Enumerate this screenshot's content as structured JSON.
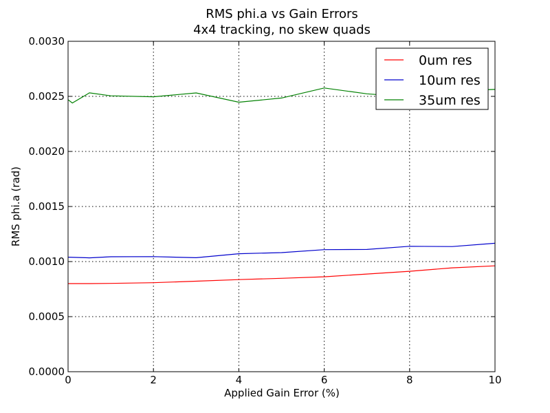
{
  "chart_data": {
    "type": "line",
    "title": "RMS phi.a vs Gain Errors",
    "subtitle": "4x4 tracking, no skew quads",
    "xlabel": "Applied Gain Error (%)",
    "ylabel": "RMS phi.a (rad)",
    "xlim": [
      0,
      10
    ],
    "ylim": [
      0,
      0.003
    ],
    "x_ticks": [
      "0",
      "2",
      "4",
      "6",
      "8",
      "10"
    ],
    "y_ticks": [
      "0.0000",
      "0.0005",
      "0.0010",
      "0.0015",
      "0.0020",
      "0.0025",
      "0.0030"
    ],
    "grid": true,
    "legend_position": "top-right",
    "series": [
      {
        "name": "0um res",
        "color": "#ff0000",
        "x": [
          0,
          0.5,
          1,
          2,
          3,
          4,
          5,
          6,
          7,
          8,
          9,
          10
        ],
        "y": [
          0.0008,
          0.0008,
          0.000802,
          0.000808,
          0.000822,
          0.000836,
          0.000848,
          0.000862,
          0.000887,
          0.000912,
          0.000943,
          0.000961
        ]
      },
      {
        "name": "10um res",
        "color": "#0000cc",
        "x": [
          0,
          0.5,
          1,
          2,
          3,
          4,
          5,
          6,
          7,
          8,
          9,
          10
        ],
        "y": [
          0.00104,
          0.001034,
          0.001044,
          0.001045,
          0.001035,
          0.001071,
          0.001081,
          0.001108,
          0.00111,
          0.001139,
          0.001136,
          0.001166
        ]
      },
      {
        "name": "35um res",
        "color": "#008000",
        "x": [
          0,
          0.1,
          0.5,
          1,
          2,
          3,
          4,
          5,
          6,
          7,
          8,
          9,
          10
        ],
        "y": [
          0.00247,
          0.00244,
          0.002532,
          0.002505,
          0.002496,
          0.002531,
          0.002447,
          0.002485,
          0.002576,
          0.002523,
          0.002495,
          0.00255,
          0.002563
        ]
      }
    ]
  }
}
